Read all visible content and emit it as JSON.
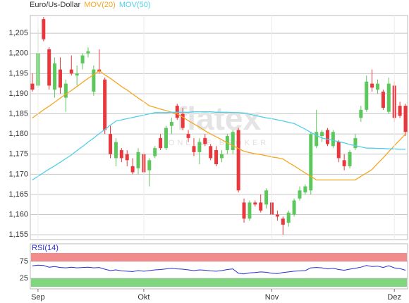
{
  "chart_data": {
    "type": "candlestick",
    "title": "Euro/Us-Dollar",
    "x": [
      null,
      "Sep",
      null,
      null,
      null,
      null,
      null,
      null,
      null,
      null,
      null,
      null,
      null,
      null,
      null,
      null,
      null,
      null,
      null,
      null,
      "Okt",
      null,
      null,
      null,
      null,
      null,
      null,
      null,
      null,
      null,
      null,
      null,
      null,
      null,
      null,
      null,
      null,
      null,
      null,
      null,
      null,
      null,
      null,
      "Nov",
      null,
      null,
      null,
      null,
      null,
      null,
      null,
      null,
      null,
      null,
      null,
      null,
      null,
      null,
      null,
      null,
      null,
      null,
      null,
      null,
      null,
      "Dez",
      null,
      null
    ],
    "open": [
      1.1925,
      1.192,
      1.2085,
      1.201,
      1.191,
      1.196,
      1.189,
      1.196,
      1.1945,
      1.1975,
      1.2,
      1.1905,
      1.196,
      1.1935,
      1.18,
      1.174,
      1.176,
      1.175,
      1.172,
      1.1715,
      1.175,
      1.171,
      1.1745,
      1.179,
      1.1765,
      1.182,
      1.187,
      1.185,
      1.18,
      1.177,
      1.1755,
      1.179,
      1.177,
      1.176,
      1.174,
      1.176,
      1.176,
      1.181,
      1.163,
      1.159,
      1.163,
      1.163,
      1.1625,
      1.163,
      1.16,
      1.159,
      1.158,
      1.16,
      1.164,
      1.1655,
      1.166,
      1.177,
      1.1795,
      1.181,
      1.177,
      1.178,
      1.1735,
      1.172,
      1.1765,
      1.184,
      1.186,
      1.1925,
      1.191,
      1.1905,
      1.1855,
      1.192,
      1.187,
      1.187
    ],
    "high": [
      1.195,
      1.206,
      1.209,
      1.2015,
      1.199,
      1.199,
      1.1935,
      1.1995,
      1.197,
      1.2,
      1.2015,
      1.197,
      1.201,
      1.194,
      1.182,
      1.179,
      1.1765,
      1.176,
      1.174,
      1.1765,
      1.1755,
      1.174,
      1.177,
      1.18,
      1.182,
      1.184,
      1.1875,
      1.1865,
      1.181,
      1.179,
      1.179,
      1.18,
      1.1775,
      1.177,
      1.176,
      1.18,
      1.181,
      1.1815,
      1.164,
      1.1635,
      1.1635,
      1.165,
      1.1665,
      1.164,
      1.161,
      1.1595,
      1.161,
      1.164,
      1.167,
      1.1675,
      1.1805,
      1.186,
      1.181,
      1.1815,
      1.181,
      1.1785,
      1.175,
      1.176,
      1.18,
      1.187,
      1.1945,
      1.196,
      1.1935,
      1.191,
      1.194,
      1.193,
      1.188,
      1.1875
    ],
    "low": [
      1.1905,
      1.1915,
      1.203,
      1.191,
      1.189,
      1.19,
      1.1855,
      1.1945,
      1.192,
      1.196,
      1.199,
      1.1895,
      1.195,
      1.18,
      1.174,
      1.172,
      1.173,
      1.172,
      1.17,
      1.17,
      1.17,
      1.167,
      1.174,
      1.176,
      1.176,
      1.18,
      1.1835,
      1.181,
      1.178,
      1.1745,
      1.1725,
      1.177,
      1.1735,
      1.172,
      1.173,
      1.175,
      1.175,
      1.1655,
      1.158,
      1.1585,
      1.162,
      1.1605,
      1.1615,
      1.159,
      1.1585,
      1.155,
      1.157,
      1.1595,
      1.1635,
      1.165,
      1.165,
      1.1765,
      1.178,
      1.177,
      1.1765,
      1.173,
      1.171,
      1.1715,
      1.176,
      1.183,
      1.1855,
      1.1905,
      1.19,
      1.186,
      1.185,
      1.183,
      1.184,
      1.1795
    ],
    "close": [
      1.191,
      1.2,
      1.2035,
      1.192,
      1.1975,
      1.1915,
      1.1925,
      1.195,
      1.195,
      1.1995,
      1.2005,
      1.196,
      1.1955,
      1.181,
      1.175,
      1.178,
      1.174,
      1.1735,
      1.1705,
      1.1755,
      1.1705,
      1.1735,
      1.1765,
      1.1765,
      1.1815,
      1.183,
      1.184,
      1.1815,
      1.179,
      1.1755,
      1.178,
      1.1775,
      1.174,
      1.1725,
      1.175,
      1.1795,
      1.1805,
      1.166,
      1.159,
      1.163,
      1.1625,
      1.161,
      1.166,
      1.16,
      1.1595,
      1.1575,
      1.1605,
      1.1635,
      1.166,
      1.167,
      1.18,
      1.1805,
      1.1805,
      1.1775,
      1.1805,
      1.174,
      1.172,
      1.1755,
      1.179,
      1.186,
      1.193,
      1.1915,
      1.1925,
      1.1865,
      1.1925,
      1.184,
      1.1845,
      1.1805
    ],
    "up_color": "#5cc85c",
    "down_color": "#e8383d",
    "series": [
      {
        "name": "MOV(20)",
        "color": "#f5a623",
        "values": [
          1.184,
          1.185,
          1.186,
          1.1869,
          1.1879,
          1.1889,
          1.1899,
          1.1908,
          1.1918,
          1.1928,
          1.1938,
          1.1947,
          1.1957,
          1.1947,
          1.1938,
          1.1928,
          1.1918,
          1.1909,
          1.1899,
          1.1889,
          1.188,
          1.187,
          1.1866,
          1.1862,
          1.1858,
          1.1854,
          1.185,
          1.1842,
          1.1833,
          1.1825,
          1.1817,
          1.1808,
          1.18,
          1.1793,
          1.1786,
          1.1778,
          1.1771,
          1.1764,
          1.1757,
          1.1754,
          1.1751,
          1.1749,
          1.1746,
          1.1743,
          1.1741,
          1.1738,
          1.1729,
          1.1721,
          1.1712,
          1.1703,
          1.1695,
          1.1686,
          1.1686,
          1.1686,
          1.1686,
          1.1686,
          1.1686,
          1.1686,
          1.1686,
          1.1695,
          1.1703,
          1.1712,
          1.1727,
          1.1741,
          1.1756,
          1.1771,
          1.1785,
          1.18
        ]
      },
      {
        "name": "MOV(50)",
        "color": "#4fd0e8",
        "values": [
          1.1686,
          1.1695,
          1.1704,
          1.1713,
          1.1721,
          1.173,
          1.1739,
          1.1748,
          1.1759,
          1.1769,
          1.178,
          1.179,
          1.1801,
          1.1811,
          1.1822,
          1.1832,
          1.1835,
          1.1838,
          1.1841,
          1.1844,
          1.1847,
          1.185,
          1.1853,
          1.1853,
          1.1853,
          1.1854,
          1.1854,
          1.1854,
          1.1854,
          1.1855,
          1.1855,
          1.1855,
          1.1855,
          1.1854,
          1.1854,
          1.1854,
          1.1853,
          1.1853,
          1.1852,
          1.1849,
          1.1846,
          1.1843,
          1.184,
          1.1838,
          1.1835,
          1.1832,
          1.1829,
          1.1826,
          1.1819,
          1.1812,
          1.1804,
          1.1797,
          1.179,
          1.1787,
          1.1784,
          1.1781,
          1.1778,
          1.1774,
          1.1771,
          1.1768,
          1.1765,
          1.1765,
          1.1764,
          1.1764,
          1.1763,
          1.1763,
          1.1762,
          1.1762
        ]
      }
    ],
    "ylim": [
      1.1538,
      1.2094
    ],
    "yticks": [
      {
        "value": 1.155,
        "label": "1,155"
      },
      {
        "value": 1.16,
        "label": "1,160"
      },
      {
        "value": 1.165,
        "label": "1,165"
      },
      {
        "value": 1.17,
        "label": "1,170"
      },
      {
        "value": 1.175,
        "label": "1,175"
      },
      {
        "value": 1.18,
        "label": "1,180"
      },
      {
        "value": 1.185,
        "label": "1,185"
      },
      {
        "value": 1.19,
        "label": "1,190"
      },
      {
        "value": 1.195,
        "label": "1,195"
      },
      {
        "value": 1.2,
        "label": "1,200"
      },
      {
        "value": 1.205,
        "label": "1,205"
      }
    ],
    "grid": true,
    "watermark": [
      "flatex",
      "ONLINE BROKER"
    ],
    "rsi": {
      "name": "RSI(14)",
      "color": "#2b2bd6",
      "values": [
        62,
        64,
        63,
        58,
        60,
        57,
        56,
        58,
        56,
        57,
        58,
        56,
        57,
        52,
        48,
        50,
        47,
        46,
        45,
        48,
        46,
        48,
        50,
        51,
        53,
        55,
        53,
        52,
        50,
        48,
        50,
        49,
        47,
        46,
        48,
        51,
        53,
        40,
        38,
        41,
        42,
        44,
        43,
        40,
        39,
        42,
        44,
        46,
        47,
        48,
        56,
        57,
        56,
        53,
        55,
        51,
        49,
        52,
        55,
        58,
        63,
        60,
        61,
        57,
        62,
        56,
        54,
        49
      ],
      "ylim": [
        0,
        100
      ],
      "yticks": [
        25,
        75
      ],
      "bands": [
        {
          "from": 75,
          "to": 100,
          "color": "#f28b8b"
        },
        {
          "from": 0,
          "to": 25,
          "color": "#7fd67f"
        }
      ]
    }
  }
}
